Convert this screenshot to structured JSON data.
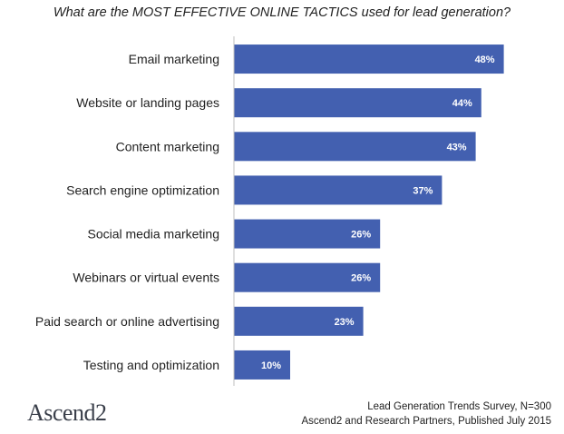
{
  "chart_data": {
    "type": "bar",
    "orientation": "horizontal",
    "title": "What are the MOST EFFECTIVE ONLINE TACTICS used for lead generation?",
    "categories": [
      "Email marketing",
      "Website or landing pages",
      "Content marketing",
      "Search engine optimization",
      "Social media marketing",
      "Webinars or virtual events",
      "Paid search or online advertising",
      "Testing and optimization"
    ],
    "values": [
      48,
      44,
      43,
      37,
      26,
      26,
      23,
      10
    ],
    "value_labels": [
      "48%",
      "44%",
      "43%",
      "37%",
      "26%",
      "26%",
      "23%",
      "10%"
    ],
    "bar_color": "#4360b0",
    "xlim": [
      0,
      60
    ],
    "grid": false
  },
  "branding": {
    "logo_text": "Ascend2"
  },
  "footer": {
    "line1": "Lead Generation Trends Survey, N=300",
    "line2": "Ascend2 and Research Partners, Published July 2015"
  }
}
